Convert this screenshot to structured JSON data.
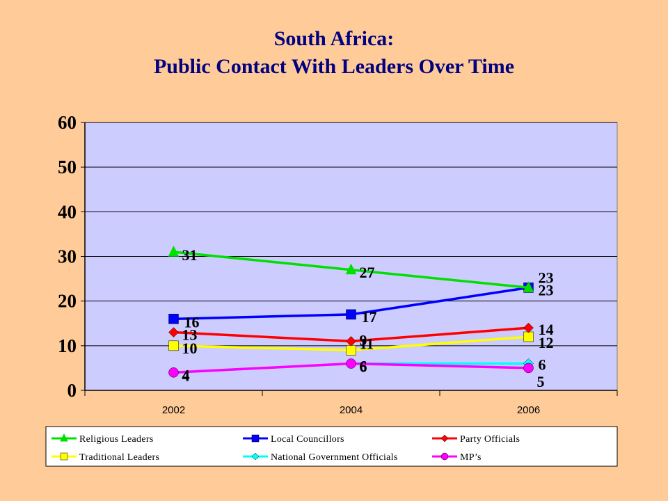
{
  "title_line1": "South Africa:",
  "title_line2": "Public Contact With Leaders Over Time",
  "chart_data": {
    "type": "line",
    "title": "South Africa: Public Contact With Leaders Over Time",
    "x": [
      "2002",
      "2004",
      "2006"
    ],
    "ylim": [
      0,
      60
    ],
    "yticks": [
      "0",
      "10",
      "20",
      "30",
      "40",
      "50",
      "60"
    ],
    "grid": true,
    "legend_position": "bottom",
    "plot_background": "#CCCCFF",
    "series": [
      {
        "name": "Religious Leaders",
        "values": [
          31,
          27,
          23
        ],
        "labels": [
          "31",
          "27",
          "23"
        ],
        "color": "#00E000",
        "marker": "triangle"
      },
      {
        "name": "Local Councillors",
        "values": [
          16,
          17,
          23
        ],
        "labels": [
          "16",
          "17",
          "23"
        ],
        "color": "#0000FF",
        "marker": "square"
      },
      {
        "name": "Party Officials",
        "values": [
          13,
          11,
          14
        ],
        "labels": [
          "13",
          "11",
          "14"
        ],
        "color": "#FF0000",
        "marker": "diamond"
      },
      {
        "name": "Traditional Leaders",
        "values": [
          10,
          9,
          12
        ],
        "labels": [
          "10",
          "9",
          "12"
        ],
        "color": "#FFFF00",
        "marker": "square"
      },
      {
        "name": "National Government Officials",
        "values": [
          4,
          6,
          6
        ],
        "labels": [
          "4",
          "6",
          "6"
        ],
        "color": "#00FFFF",
        "marker": "diamond"
      },
      {
        "name": "MP’s",
        "values": [
          4,
          6,
          5
        ],
        "labels": [
          "4",
          "6",
          "5"
        ],
        "color": "#FF00FF",
        "marker": "circle"
      }
    ]
  }
}
